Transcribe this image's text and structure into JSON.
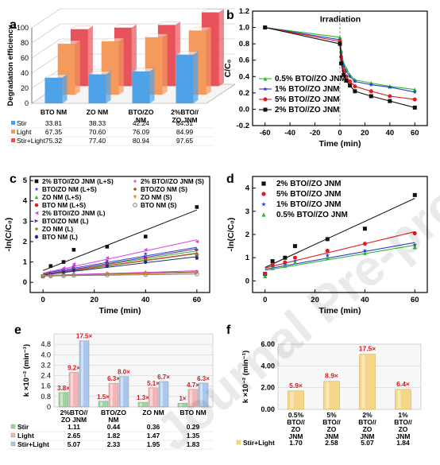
{
  "watermark": "Journal Pre-proof",
  "panel_labels": {
    "a": "a",
    "b": "b",
    "c": "c",
    "d": "d",
    "e": "e",
    "f": "f"
  },
  "colors": {
    "stir": "#4ea3e8",
    "light": "#f39a5c",
    "stirlight": "#e7535a",
    "black": "#111111",
    "red": "#e21b1b",
    "blue": "#2a3bd8",
    "green": "#2eb82e",
    "pink": "#e040e0",
    "purple": "#7030a0",
    "olive": "#8a8a2a",
    "orange": "#e8892b",
    "navy": "#1f2a8a",
    "gray": "#808080",
    "bar_e_stir": "#9ed49e",
    "bar_e_light": "#f2b6b6",
    "bar_e_sl": "#a9c8f0",
    "bar_f": "#f5d78a",
    "val_e": "#c81e1e"
  },
  "chart_data": [
    {
      "panel": "a",
      "type": "bar",
      "ylabel": "Degradation efficiency",
      "yticks": [
        0,
        20,
        40,
        60,
        80,
        100
      ],
      "ylim": [
        0,
        100
      ],
      "categories": [
        "BTO NM",
        "ZO NM",
        "BTO/ZO NM",
        "2%BTO//ZO JNM"
      ],
      "series": [
        {
          "name": "Stir",
          "values": [
            33.81,
            38.33,
            42.24,
            64.31
          ],
          "color": "#4ea3e8",
          "labels": [
            "33.81",
            "38.33",
            "42.24",
            "64.31"
          ]
        },
        {
          "name": "Light",
          "values": [
            67.35,
            70.6,
            76.09,
            84.99
          ],
          "color": "#f39a5c",
          "labels": [
            "67.35",
            "70.60",
            "76.09",
            "84.99"
          ]
        },
        {
          "name": "Stir+Light",
          "values": [
            75.32,
            77.4,
            80.94,
            97.65
          ],
          "color": "#e7535a",
          "labels": [
            "75.32",
            "77.40",
            "80.94",
            "97.65"
          ]
        }
      ],
      "category_labels": [
        [
          "BTO NM"
        ],
        [
          "ZO NM"
        ],
        [
          "BTO/ZO",
          "NM"
        ],
        [
          "2%BTO//",
          "ZO JNM"
        ]
      ]
    },
    {
      "panel": "b",
      "type": "line",
      "xlabel": "Time (min)",
      "ylabel": "C/C₀",
      "xlim": [
        -70,
        70
      ],
      "ylim": [
        -0.2,
        1.2
      ],
      "xticks": [
        -60,
        -40,
        -20,
        0,
        20,
        40,
        60
      ],
      "yticks": [
        -0.2,
        0.0,
        0.2,
        0.4,
        0.6,
        0.8,
        1.0,
        1.2
      ],
      "xtick_labels": [
        "-60",
        "-40",
        "-20",
        "0",
        "20",
        "40",
        "60"
      ],
      "ytick_labels": [
        "-0.2",
        "0.0",
        "0.2",
        "0.4",
        "0.6",
        "0.8",
        "1.0",
        "1.2"
      ],
      "annotation": "Irradiation",
      "series": [
        {
          "name": "0.5% BTO//ZO JNM",
          "marker": "triangle",
          "color": "#2eb82e",
          "x": [
            -60,
            0,
            1,
            3,
            5,
            8,
            12,
            25,
            40,
            60
          ],
          "y": [
            1.0,
            0.88,
            0.72,
            0.56,
            0.5,
            0.42,
            0.36,
            0.32,
            0.28,
            0.24
          ]
        },
        {
          "name": "1% BTO//ZO JNM",
          "marker": "star",
          "color": "#2a3bd8",
          "x": [
            -60,
            0,
            1,
            3,
            5,
            8,
            12,
            25,
            40,
            60
          ],
          "y": [
            1.0,
            0.85,
            0.68,
            0.52,
            0.46,
            0.4,
            0.34,
            0.3,
            0.27,
            0.21
          ]
        },
        {
          "name": "5% BTO//ZO JNM",
          "marker": "circle",
          "color": "#e21b1b",
          "x": [
            -60,
            0,
            1,
            3,
            5,
            8,
            12,
            25,
            40,
            60
          ],
          "y": [
            1.0,
            0.83,
            0.64,
            0.47,
            0.4,
            0.34,
            0.28,
            0.22,
            0.16,
            0.12
          ]
        },
        {
          "name": "2% BTO//ZO JNM",
          "marker": "square",
          "color": "#111111",
          "x": [
            -60,
            0,
            1,
            3,
            5,
            8,
            12,
            25,
            40,
            60
          ],
          "y": [
            1.0,
            0.8,
            0.56,
            0.42,
            0.35,
            0.29,
            0.22,
            0.16,
            0.1,
            0.02
          ]
        }
      ]
    },
    {
      "panel": "c",
      "type": "scatter",
      "xlabel": "Time (min)",
      "ylabel": "-ln(C/C₀)",
      "xlim": [
        -5,
        65
      ],
      "ylim": [
        -0.5,
        5.2
      ],
      "xticks": [
        0,
        20,
        40,
        60
      ],
      "yticks": [
        0,
        1,
        2,
        3,
        4,
        5
      ],
      "xtick_labels": [
        "0",
        "20",
        "40",
        "60"
      ],
      "ytick_labels": [
        "0",
        "1",
        "2",
        "3",
        "4",
        "5"
      ],
      "series": [
        {
          "name": "2% BTO//ZO JNM (L+S)",
          "marker": "square",
          "color": "#111111",
          "x": [
            0,
            3,
            8,
            12,
            25,
            40,
            60
          ],
          "y": [
            0.3,
            0.8,
            1.0,
            1.6,
            1.75,
            2.25,
            3.7
          ]
        },
        {
          "name": "BTO/ZO NM (L+S)",
          "marker": "star",
          "color": "#2a3bd8",
          "x": [
            0,
            3,
            8,
            12,
            25,
            40,
            60
          ],
          "y": [
            0.3,
            0.5,
            0.6,
            0.8,
            1.05,
            1.4,
            1.6
          ]
        },
        {
          "name": "ZO NM (L+S)",
          "marker": "triangle",
          "color": "#2eb82e",
          "x": [
            0,
            3,
            8,
            12,
            25,
            40,
            60
          ],
          "y": [
            0.3,
            0.45,
            0.55,
            0.7,
            0.95,
            1.25,
            1.45
          ]
        },
        {
          "name": "BTO NM (L+S)",
          "marker": "circle",
          "color": "#e21b1b",
          "x": [
            0,
            3,
            8,
            12,
            25,
            40,
            60
          ],
          "y": [
            0.3,
            0.42,
            0.52,
            0.65,
            0.9,
            1.15,
            1.35
          ]
        },
        {
          "name": "2% BTO//ZO JNM (L)",
          "marker": "tri-left",
          "color": "#e040e0",
          "x": [
            0,
            3,
            8,
            12,
            25,
            40,
            60
          ],
          "y": [
            0.3,
            0.5,
            0.7,
            0.9,
            1.2,
            1.6,
            2.0
          ]
        },
        {
          "name": "BTO/ZO NM (L)",
          "marker": "tri-right",
          "color": "#7030a0",
          "x": [
            0,
            3,
            8,
            12,
            25,
            40,
            60
          ],
          "y": [
            0.3,
            0.45,
            0.55,
            0.7,
            0.95,
            1.25,
            1.6
          ]
        },
        {
          "name": "ZO NM (L)",
          "marker": "diamond",
          "color": "#8a8a2a",
          "x": [
            0,
            3,
            8,
            12,
            25,
            40,
            60
          ],
          "y": [
            0.3,
            0.4,
            0.5,
            0.62,
            0.85,
            1.1,
            1.35
          ]
        },
        {
          "name": "BTO NM (L)",
          "marker": "hex",
          "color": "#1f2a8a",
          "x": [
            0,
            3,
            8,
            12,
            25,
            40,
            60
          ],
          "y": [
            0.3,
            0.38,
            0.48,
            0.58,
            0.8,
            1.0,
            1.2
          ]
        },
        {
          "name": "2% BTO//ZO JNM (S)",
          "marker": "star",
          "color": "#e040e0",
          "x": [
            0,
            3,
            8,
            12,
            25,
            40,
            60
          ],
          "y": [
            0.3,
            0.35,
            0.38,
            0.4,
            0.45,
            0.5,
            0.55
          ]
        },
        {
          "name": "BTO/ZO NM (S)",
          "marker": "diamond",
          "color": "#8a5a2a",
          "x": [
            0,
            3,
            8,
            12,
            25,
            40,
            60
          ],
          "y": [
            0.3,
            0.33,
            0.36,
            0.38,
            0.42,
            0.46,
            0.5
          ]
        },
        {
          "name": "ZO NM (S)",
          "marker": "tri-down",
          "color": "#e8892b",
          "x": [
            0,
            3,
            8,
            12,
            25,
            40,
            60
          ],
          "y": [
            0.3,
            0.32,
            0.34,
            0.36,
            0.4,
            0.43,
            0.46
          ]
        },
        {
          "name": "BTO NM (S)",
          "marker": "circle-open",
          "color": "#808080",
          "x": [
            0,
            3,
            8,
            12,
            25,
            40,
            60
          ],
          "y": [
            0.3,
            0.31,
            0.32,
            0.34,
            0.36,
            0.38,
            0.4
          ]
        }
      ],
      "legend_col1": [
        0,
        1,
        2,
        3,
        4,
        5,
        6,
        7
      ],
      "legend_col2": [
        8,
        9,
        10,
        11
      ]
    },
    {
      "panel": "d",
      "type": "scatter",
      "xlabel": "Time (min)",
      "ylabel": "-ln(C/C₀)",
      "xlim": [
        -5,
        65
      ],
      "ylim": [
        -0.5,
        4.5
      ],
      "xticks": [
        0,
        20,
        40,
        60
      ],
      "yticks": [
        0,
        1,
        2,
        3,
        4
      ],
      "xtick_labels": [
        "0",
        "20",
        "40",
        "60"
      ],
      "ytick_labels": [
        "0",
        "1",
        "2",
        "3",
        "4"
      ],
      "series": [
        {
          "name": "2% BTO//ZO JNM",
          "marker": "square",
          "color": "#111111",
          "x": [
            0,
            3,
            8,
            12,
            25,
            40,
            60
          ],
          "y": [
            0.3,
            0.85,
            1.0,
            1.5,
            1.8,
            2.25,
            3.7
          ]
        },
        {
          "name": "5% BTO//ZO JNM",
          "marker": "circle",
          "color": "#e21b1b",
          "x": [
            0,
            3,
            8,
            12,
            25,
            40,
            60
          ],
          "y": [
            0.3,
            0.7,
            0.8,
            1.0,
            1.3,
            1.6,
            2.05
          ]
        },
        {
          "name": "1% BTO//ZO JNM",
          "marker": "star",
          "color": "#2a3bd8",
          "x": [
            0,
            3,
            8,
            12,
            25,
            40,
            60
          ],
          "y": [
            0.25,
            0.6,
            0.7,
            0.85,
            1.1,
            1.3,
            1.55
          ]
        },
        {
          "name": "0.5% BTO//ZO JNM",
          "marker": "triangle",
          "color": "#2eb82e",
          "x": [
            0,
            3,
            8,
            12,
            25,
            40,
            60
          ],
          "y": [
            0.2,
            0.55,
            0.65,
            0.8,
            1.0,
            1.2,
            1.45
          ]
        }
      ]
    },
    {
      "panel": "e",
      "type": "bar",
      "ylabel": "k ×10⁻² (min⁻¹)",
      "ylim": [
        0,
        5.6
      ],
      "yticks": [
        0,
        0.8,
        1.6,
        2.4,
        3.2,
        4.0,
        4.8
      ],
      "ytick_labels": [
        "0",
        "0.8",
        "1.6",
        "2.4",
        "3.2",
        "4.0",
        "4.8"
      ],
      "category_labels": [
        [
          "2%BTO//",
          "ZO JNM"
        ],
        [
          "BTO/ZO",
          "NM"
        ],
        [
          "ZO NM"
        ],
        [
          "BTO NM"
        ]
      ],
      "series": [
        {
          "name": "Stir",
          "color": "#9ed49e",
          "values": [
            1.11,
            0.44,
            0.36,
            0.29
          ],
          "labels": [
            "1.11",
            "0.44",
            "0.36",
            "0.29"
          ]
        },
        {
          "name": "Light",
          "color": "#f2b6b6",
          "values": [
            2.65,
            1.82,
            1.47,
            1.35
          ],
          "labels": [
            "2.65",
            "1.82",
            "1.47",
            "1.35"
          ]
        },
        {
          "name": "Stir+Light",
          "color": "#a9c8f0",
          "values": [
            5.07,
            2.33,
            1.95,
            1.83
          ],
          "labels": [
            "5.07",
            "2.33",
            "1.95",
            "1.83"
          ]
        }
      ],
      "annotations": [
        [
          "3.8×",
          "9.2×",
          "17.5×"
        ],
        [
          "1.5×",
          "6.3×",
          "8.0×"
        ],
        [
          "1.3×",
          "5.1×",
          "6.7×"
        ],
        [
          "1×",
          "4.7×",
          "6.3×"
        ]
      ]
    },
    {
      "panel": "f",
      "type": "bar",
      "ylabel": "k ×10⁻² (min⁻¹)",
      "ylim": [
        0,
        6.0
      ],
      "yticks": [
        0,
        2,
        4,
        6
      ],
      "ytick_labels": [
        "0.00",
        "2.00",
        "4.00",
        "6.00"
      ],
      "category_labels": [
        [
          "0.5%",
          "BTO//",
          "ZO",
          "JNM"
        ],
        [
          "5%",
          "BTO//",
          "ZO",
          "JNM"
        ],
        [
          "2%",
          "BTO//",
          "ZO",
          "JNM"
        ],
        [
          "1%",
          "BTO//",
          "ZO",
          "JNM"
        ]
      ],
      "series": [
        {
          "name": "Stir+Light",
          "color": "#f5d78a",
          "values": [
            1.7,
            2.58,
            5.07,
            1.84
          ],
          "labels": [
            "1.70",
            "2.58",
            "5.07",
            "1.84"
          ]
        }
      ],
      "annotations": [
        "5.9×",
        "8.9×",
        "17.5×",
        "6.4×"
      ]
    }
  ]
}
